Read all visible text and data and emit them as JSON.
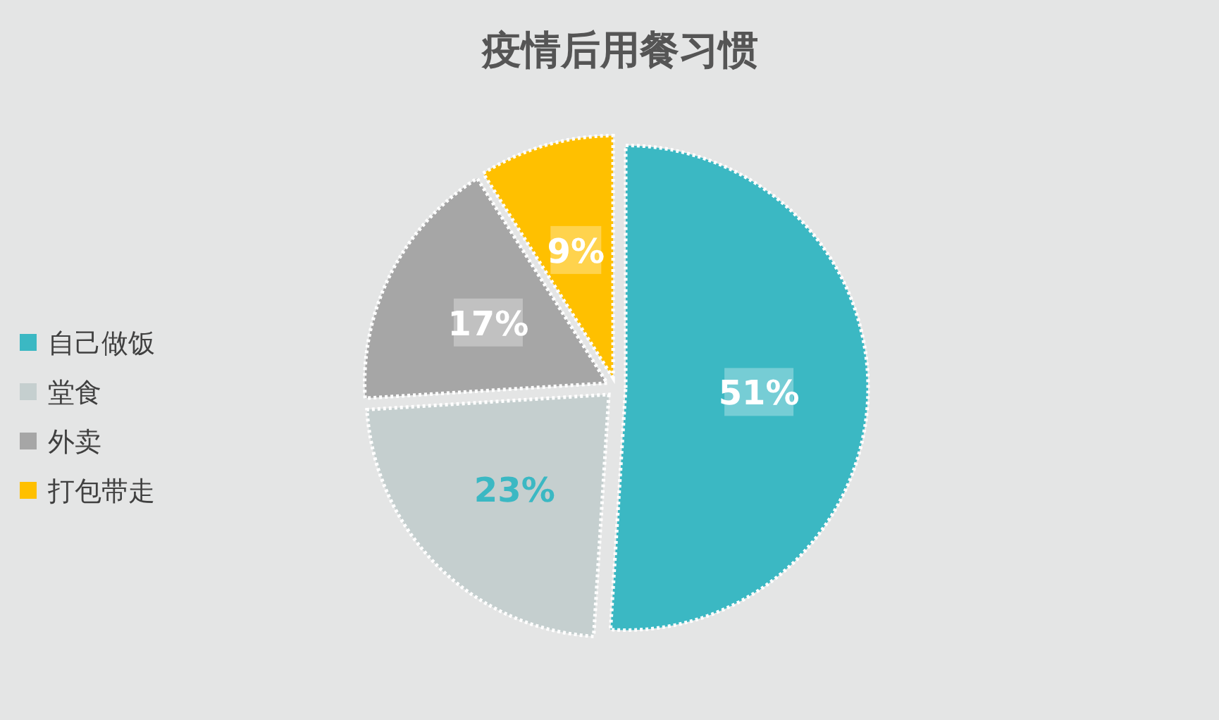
{
  "chart_data": {
    "type": "pie",
    "title": "疫情后用餐习惯",
    "categories": [
      "自己做饭",
      "堂食",
      "外卖",
      "打包带走"
    ],
    "values": [
      51,
      23,
      17,
      9
    ],
    "colors": [
      "#3bb8c3",
      "#c5cfcf",
      "#a6a6a6",
      "#ffc000"
    ],
    "value_labels": [
      "51%",
      "23%",
      "17%",
      "9%"
    ],
    "legend": "left"
  }
}
